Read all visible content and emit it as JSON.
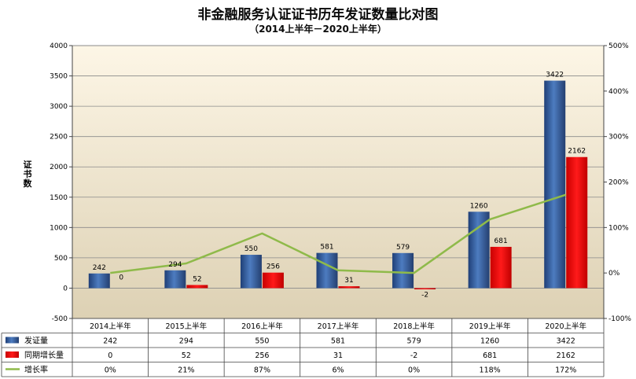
{
  "chart_data": {
    "type": "bar",
    "title": "非金融服务认证证书历年发证数量比对图",
    "subtitle": "（2014上半年－2020上半年）",
    "ylabel": "证书数",
    "categories": [
      "2014上半年",
      "2015上半年",
      "2016上半年",
      "2017上半年",
      "2018上半年",
      "2019上半年",
      "2020上半年"
    ],
    "series": [
      {
        "name": "发证量",
        "values": [
          242,
          294,
          550,
          581,
          579,
          1260,
          3422
        ],
        "color": "#2e5a9c",
        "display": [
          "242",
          "294",
          "550",
          "581",
          "579",
          "1260",
          "3422"
        ]
      },
      {
        "name": "同期增长量",
        "values": [
          0,
          52,
          256,
          31,
          -2,
          681,
          2162
        ],
        "color": "#e00000",
        "display": [
          "0",
          "52",
          "256",
          "31",
          "-2",
          "681",
          "2162"
        ]
      },
      {
        "name": "增长率",
        "values": [
          0,
          21,
          87,
          6,
          0,
          118,
          172
        ],
        "color": "#8fba4a",
        "axis": "right",
        "display": [
          "0%",
          "21%",
          "87%",
          "6%",
          "0%",
          "118%",
          "172%"
        ]
      }
    ],
    "ylim": [
      -500,
      4000
    ],
    "yticks": [
      "-500",
      "0",
      "500",
      "1000",
      "1500",
      "2000",
      "2500",
      "3000",
      "3500",
      "4000"
    ],
    "y2lim": [
      -100,
      500
    ],
    "y2ticks": [
      "-100%",
      "0%",
      "100%",
      "200%",
      "300%",
      "400%",
      "500%"
    ],
    "grid": true,
    "legend": "data-table"
  }
}
